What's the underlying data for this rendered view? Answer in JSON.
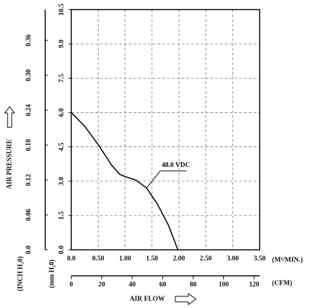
{
  "chart_data": {
    "type": "line",
    "x_label": "AIR FLOW",
    "y_label": "AIR PRESSURE",
    "x_unit": "(M³/MIN.)",
    "x2_unit": "(CFM)",
    "y_unit": "(mm H₂0)",
    "y2_unit": "(INCH H₂0)",
    "xlim": [
      0,
      3.5
    ],
    "xticks": [
      {
        "value": 0,
        "label": "0.0"
      },
      {
        "value": 0.5,
        "label": "0.50"
      },
      {
        "value": 1,
        "label": "1.00"
      },
      {
        "value": 1.5,
        "label": "1.50"
      },
      {
        "value": 2,
        "label": "2.00"
      },
      {
        "value": 2.5,
        "label": "2.50"
      },
      {
        "value": 3,
        "label": "3.00"
      },
      {
        "value": 3.5,
        "label": "3.50"
      }
    ],
    "x2lim": [
      0,
      123.6
    ],
    "x2ticks": [
      0,
      20,
      40,
      60,
      80,
      100,
      120
    ],
    "ylim": [
      0,
      10.5
    ],
    "yticks": [
      {
        "value": 0,
        "label": "0.0"
      },
      1.5,
      {
        "value": 3,
        "label": "3.0"
      },
      4.5,
      {
        "value": 6,
        "label": "6.0"
      },
      7.5,
      {
        "value": 9,
        "label": "9.0"
      },
      10.5
    ],
    "y2lim": [
      0,
      0.413
    ],
    "y2ticks": [
      {
        "value": 0,
        "label": "0.0"
      },
      0.06,
      0.12,
      0.18,
      0.24,
      {
        "value": 0.3,
        "label": "0.30"
      },
      0.36
    ],
    "grid": true,
    "series": [
      {
        "name": "48.0 VDC",
        "color": "#000000",
        "x": [
          0,
          0.25,
          0.5,
          0.75,
          0.9,
          1.0,
          1.2,
          1.4,
          1.6,
          1.8,
          1.9,
          1.98
        ],
        "values": [
          6.0,
          5.4,
          4.6,
          3.7,
          3.3,
          3.2,
          3.05,
          2.7,
          2.0,
          1.1,
          0.5,
          0
        ]
      }
    ]
  }
}
